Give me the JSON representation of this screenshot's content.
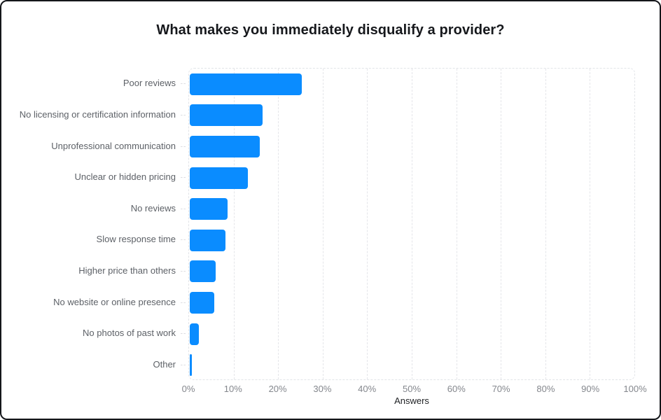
{
  "chart_data": {
    "type": "bar",
    "orientation": "horizontal",
    "title": "What makes you immediately disqualify a provider?",
    "xlabel": "Answers",
    "unit": "%",
    "xlim": [
      0,
      100
    ],
    "x_tick_labels": [
      "0%",
      "10%",
      "20%",
      "30%",
      "40%",
      "50%",
      "60%",
      "70%",
      "80%",
      "90%",
      "100%"
    ],
    "grid": "vertical-dashed",
    "legend": "none",
    "categories": [
      "Poor reviews",
      "No licensing or certification information",
      "Unprofessional communication",
      "Unclear or hidden pricing",
      "No reviews",
      "Slow response time",
      "Higher price than others",
      "No website or online presence",
      "No photos of past work",
      "Other"
    ],
    "values": [
      25.2,
      16.4,
      15.7,
      13.0,
      8.5,
      8.0,
      5.8,
      5.5,
      2.1,
      0.4
    ],
    "bar_color": "#0a8cff"
  },
  "colors": {
    "bar": "#0a8cff",
    "gridline": "#e4e5e9",
    "tick_text": "#84878d",
    "category_text": "#5d6167",
    "title_text": "#16181c",
    "axis_title_text": "#1e2023",
    "card_border": "#14161a",
    "background": "#ffffff"
  }
}
